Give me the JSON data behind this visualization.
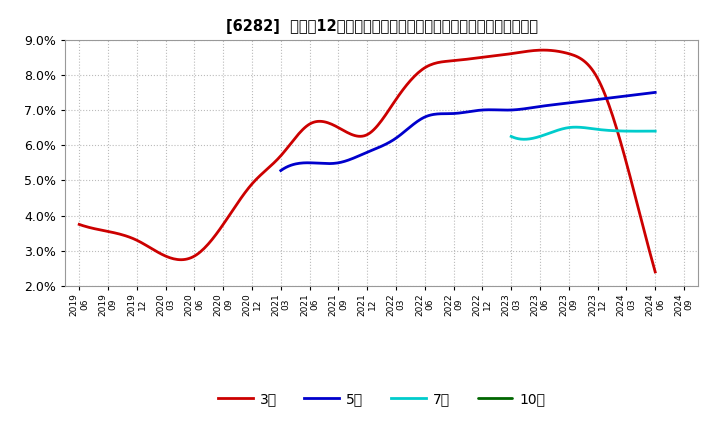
{
  "title": "[6282]  売上高12か月移動合計の対前年同期増減率の標準偏差の推移",
  "ylim": [
    0.02,
    0.09
  ],
  "yticks": [
    0.02,
    0.03,
    0.04,
    0.05,
    0.06,
    0.07,
    0.08,
    0.09
  ],
  "background_color": "#ffffff",
  "grid_color": "#bbbbbb",
  "series": {
    "3year": {
      "color": "#cc0000",
      "label": "3年",
      "dates": [
        "2019/06",
        "2019/09",
        "2019/12",
        "2020/03",
        "2020/06",
        "2020/09",
        "2020/12",
        "2021/03",
        "2021/06",
        "2021/09",
        "2021/12",
        "2022/03",
        "2022/06",
        "2022/09",
        "2022/12",
        "2023/03",
        "2023/06",
        "2023/09",
        "2023/12",
        "2024/03",
        "2024/06"
      ],
      "values": [
        0.0375,
        0.0355,
        0.033,
        0.0285,
        0.0285,
        0.0375,
        0.049,
        0.057,
        0.066,
        0.065,
        0.063,
        0.073,
        0.082,
        0.084,
        0.085,
        0.086,
        0.087,
        0.086,
        0.079,
        0.055,
        0.024
      ]
    },
    "5year": {
      "color": "#0000cc",
      "label": "5年",
      "dates": [
        "2021/03",
        "2021/06",
        "2021/09",
        "2021/12",
        "2022/03",
        "2022/06",
        "2022/09",
        "2022/12",
        "2023/03",
        "2023/06",
        "2023/09",
        "2023/12",
        "2024/03",
        "2024/06"
      ],
      "values": [
        0.0528,
        0.055,
        0.055,
        0.058,
        0.062,
        0.068,
        0.069,
        0.07,
        0.07,
        0.071,
        0.072,
        0.073,
        0.074,
        0.075
      ]
    },
    "7year": {
      "color": "#00cccc",
      "label": "7年",
      "dates": [
        "2023/03",
        "2023/06",
        "2023/09",
        "2023/12",
        "2024/03",
        "2024/06"
      ],
      "values": [
        0.0625,
        0.0625,
        0.065,
        0.0645,
        0.064,
        0.064
      ]
    },
    "10year": {
      "color": "#006600",
      "label": "10年",
      "dates": [],
      "values": []
    }
  },
  "x_tick_labels": [
    "2019/06",
    "2019/09",
    "2019/12",
    "2020/03",
    "2020/06",
    "2020/09",
    "2020/12",
    "2021/03",
    "2021/06",
    "2021/09",
    "2021/12",
    "2022/03",
    "2022/06",
    "2022/09",
    "2022/12",
    "2023/03",
    "2023/06",
    "2023/09",
    "2023/12",
    "2024/03",
    "2024/06",
    "2024/09"
  ]
}
